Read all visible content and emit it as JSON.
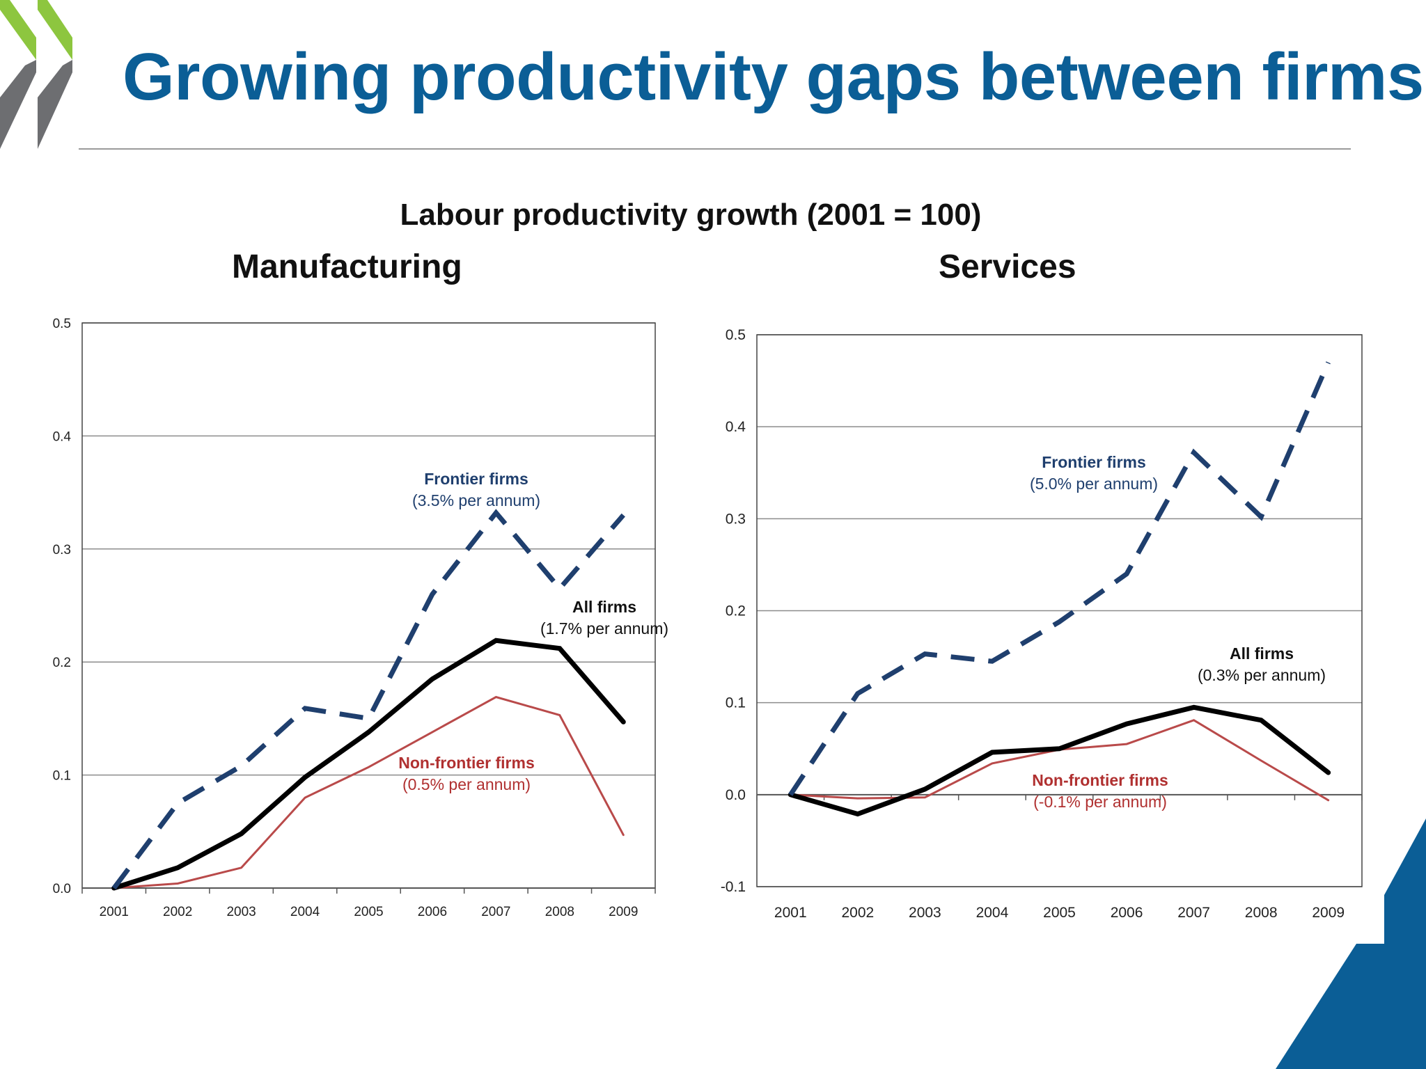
{
  "slide": {
    "title": "Growing productivity gaps between firms",
    "figure_title": "Labour productivity growth (2001 = 100)"
  },
  "colors": {
    "title": "#0b5e96",
    "frontier": "#1f3f6e",
    "all_firms": "#000000",
    "non_frontier": "#b94a4a",
    "non_frontier_label": "#b03030",
    "logo_green": "#8dc63f",
    "logo_gray": "#6d6e71",
    "corner": "#0b5e96"
  },
  "chart_data": [
    {
      "type": "line",
      "title": "Manufacturing",
      "x": [
        "2001",
        "2002",
        "2003",
        "2004",
        "2005",
        "2006",
        "2007",
        "2008",
        "2009"
      ],
      "ylim": [
        0.0,
        0.5
      ],
      "yticks": [
        "0.0",
        "0.1",
        "0.2",
        "0.3",
        "0.4",
        "0.5"
      ],
      "grid": true,
      "legend": "inline labels",
      "series": [
        {
          "key": "frontier",
          "name": "Frontier firms",
          "note": "(3.5% per annum)",
          "style": "dashed",
          "values": [
            0.0,
            0.075,
            0.108,
            0.159,
            0.15,
            0.26,
            0.332,
            0.265,
            0.33
          ]
        },
        {
          "key": "all",
          "name": "All firms",
          "note": "(1.7% per annum)",
          "style": "solid-thick",
          "values": [
            0.0,
            0.018,
            0.048,
            0.098,
            0.138,
            0.185,
            0.219,
            0.212,
            0.147
          ]
        },
        {
          "key": "nonfrontier",
          "name": "Non-frontier firms",
          "note": "(0.5% per annum)",
          "style": "solid-thin",
          "values": [
            0.0,
            0.004,
            0.018,
            0.08,
            0.107,
            0.138,
            0.169,
            0.153,
            0.047
          ]
        }
      ]
    },
    {
      "type": "line",
      "title": "Services",
      "x": [
        "2001",
        "2002",
        "2003",
        "2004",
        "2005",
        "2006",
        "2007",
        "2008",
        "2009"
      ],
      "ylim": [
        -0.1,
        0.5
      ],
      "yticks": [
        "-0.1",
        "0.0",
        "0.1",
        "0.2",
        "0.3",
        "0.4",
        "0.5"
      ],
      "grid": true,
      "legend": "inline labels",
      "series": [
        {
          "key": "frontier",
          "name": "Frontier  firms",
          "note": "(5.0% per annum)",
          "style": "dashed",
          "values": [
            0.0,
            0.11,
            0.153,
            0.145,
            0.188,
            0.24,
            0.372,
            0.302,
            0.47
          ]
        },
        {
          "key": "all",
          "name": "All firms",
          "note": "(0.3% per annum)",
          "style": "solid-thick",
          "values": [
            0.0,
            -0.021,
            0.006,
            0.046,
            0.05,
            0.077,
            0.095,
            0.081,
            0.024
          ]
        },
        {
          "key": "nonfrontier",
          "name": "Non-frontier  firms",
          "note": "(-0.1% per annum)",
          "style": "solid-thin",
          "values": [
            0.0,
            -0.004,
            -0.003,
            0.034,
            0.049,
            0.055,
            0.081,
            0.037,
            -0.006
          ]
        }
      ]
    }
  ]
}
